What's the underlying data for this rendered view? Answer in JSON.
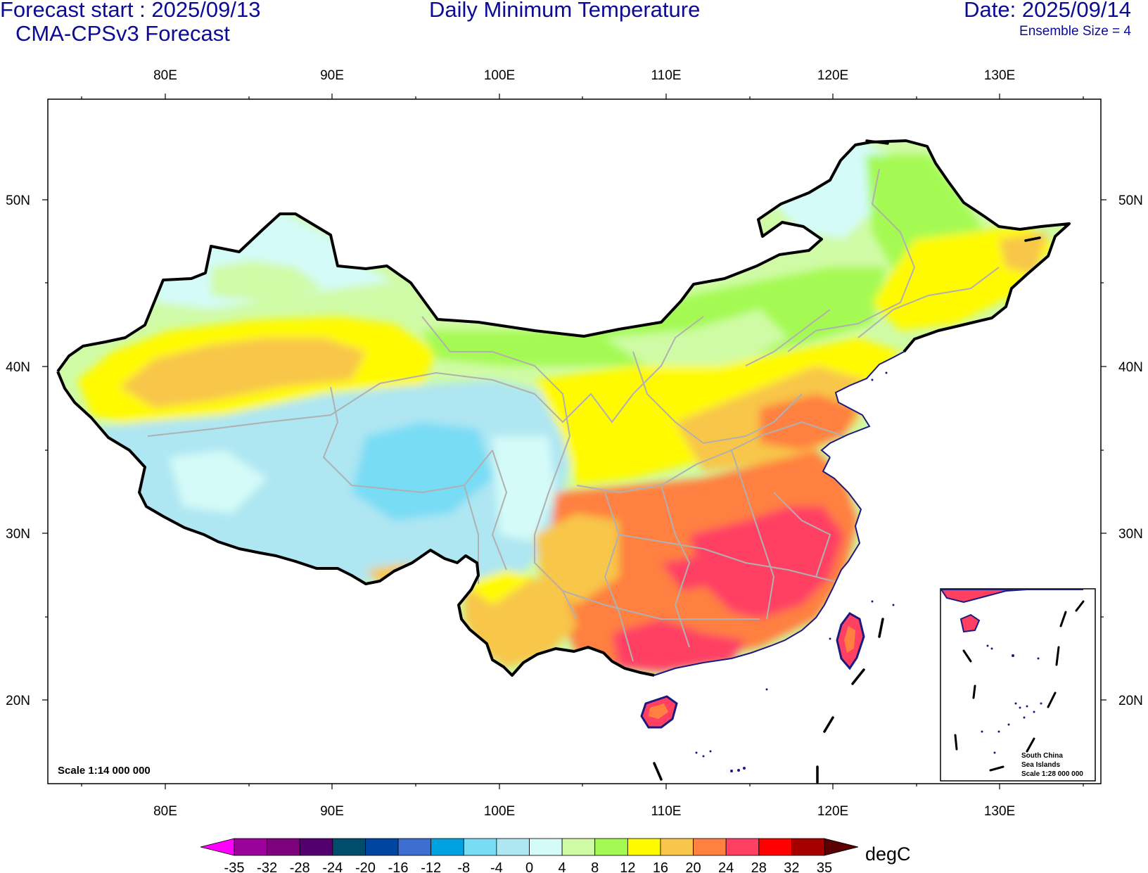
{
  "header": {
    "forecast_start": "Forecast start : 2025/09/13",
    "model": "CMA-CPSv3 Forecast",
    "title": "Daily Minimum Temperature",
    "date": "Date: 2025/09/14",
    "ensemble": "Ensemble Size = 4"
  },
  "map": {
    "lon_labels": [
      "80E",
      "90E",
      "100E",
      "110E",
      "120E",
      "130E"
    ],
    "lat_labels": [
      "50N",
      "40N",
      "30N",
      "20N"
    ],
    "scale_label": "Scale 1:14 000 000",
    "inset_labels": [
      "South China",
      "Sea Islands",
      "Scale 1:28 000 000"
    ]
  },
  "colorbar": {
    "unit": "degC",
    "ticks": [
      "-35",
      "-32",
      "-28",
      "-24",
      "-20",
      "-16",
      "-12",
      "-8",
      "-4",
      "0",
      "4",
      "8",
      "12",
      "16",
      "20",
      "24",
      "28",
      "32",
      "35"
    ],
    "colors": [
      "#9b019b",
      "#7e017e",
      "#520070",
      "#004c6a",
      "#0045a0",
      "#3d6fd1",
      "#00a3e0",
      "#78dcf5",
      "#aee6f2",
      "#d4fbf8",
      "#d0fba6",
      "#a4fa52",
      "#fffa00",
      "#f8c64a",
      "#ff8040",
      "#ff4063",
      "#ff0000",
      "#a70000"
    ],
    "low_end_color": "#ff00ff",
    "high_end_color": "#5a0000"
  }
}
